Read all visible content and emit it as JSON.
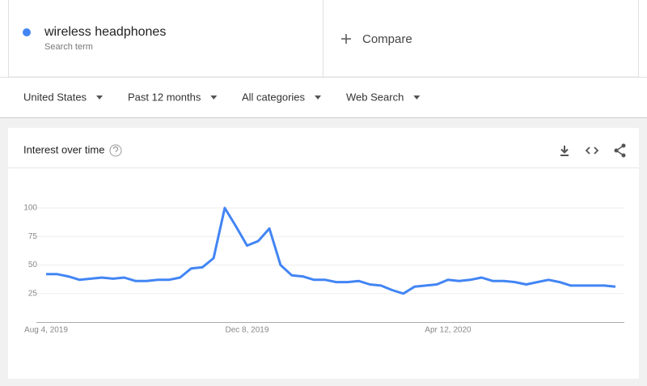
{
  "search_term": {
    "sublabel": "Search term"
  },
  "compare": {
    "label": "Compare"
  },
  "filters": [
    "United States",
    "Past 12 months",
    "All categories",
    "Web Search"
  ],
  "chart_data": {
    "type": "line",
    "title": "Interest over time",
    "categories": [
      "Aug 4, 2019",
      null,
      null,
      null,
      null,
      null,
      null,
      null,
      null,
      null,
      null,
      null,
      null,
      null,
      null,
      null,
      null,
      null,
      "Dec 8, 2019",
      null,
      null,
      null,
      null,
      null,
      null,
      null,
      null,
      null,
      null,
      null,
      null,
      null,
      null,
      null,
      null,
      null,
      "Apr 12, 2020",
      null,
      null,
      null,
      null,
      null,
      null,
      null,
      null,
      null,
      null,
      null,
      null,
      null,
      null,
      null
    ],
    "series": [
      {
        "name": "wireless headphones",
        "color": "#4285f4",
        "values": [
          42,
          42,
          40,
          37,
          38,
          39,
          38,
          39,
          36,
          36,
          37,
          37,
          39,
          47,
          48,
          56,
          100,
          84,
          67,
          71,
          82,
          50,
          41,
          40,
          37,
          37,
          35,
          35,
          36,
          33,
          32,
          28,
          25,
          31,
          32,
          33,
          37,
          36,
          37,
          39,
          36,
          36,
          35,
          33,
          35,
          37,
          35,
          32,
          32,
          32,
          32,
          31
        ]
      }
    ],
    "ylim": [
      0,
      100
    ],
    "yticks": [
      25,
      50,
      75,
      100
    ],
    "grid": true
  }
}
